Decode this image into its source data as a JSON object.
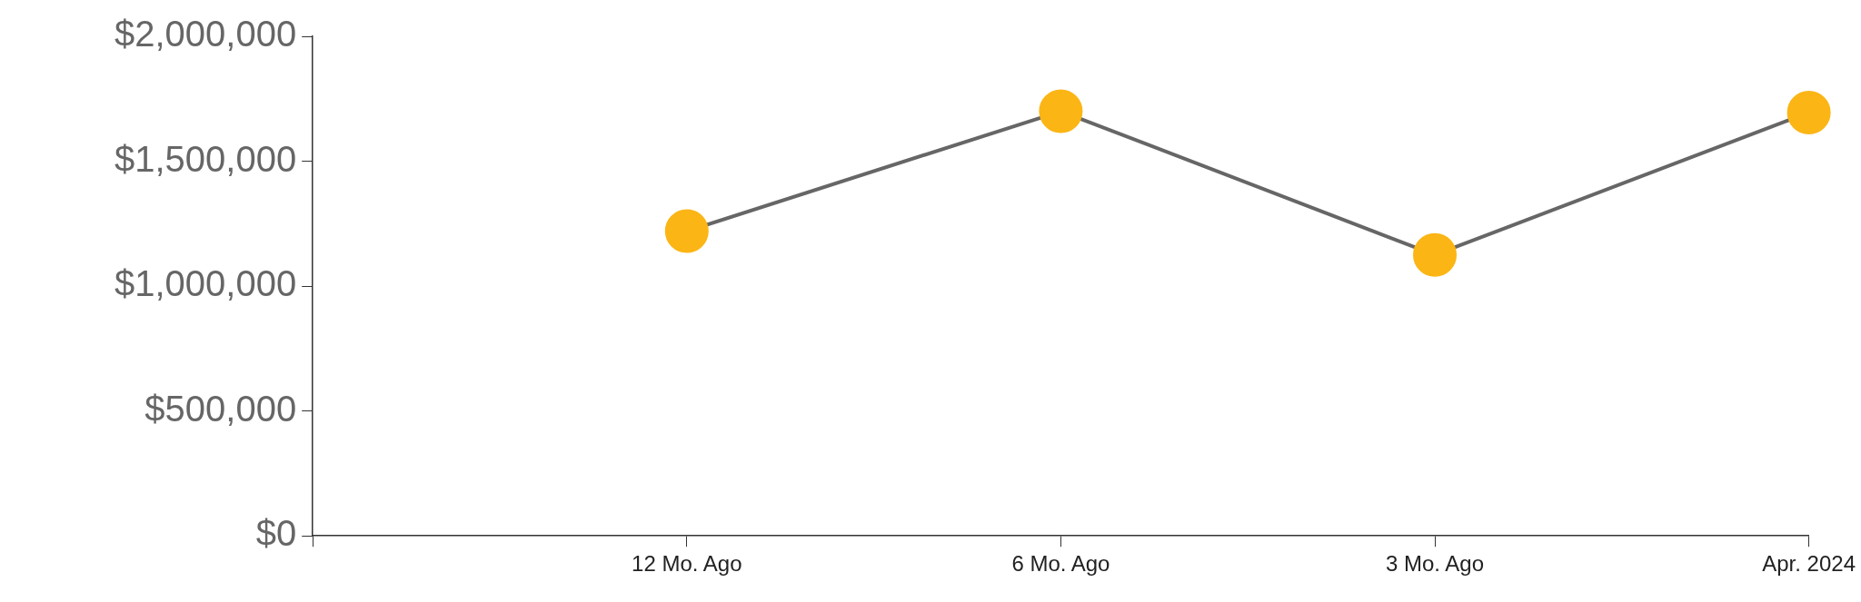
{
  "chart_data": {
    "type": "line",
    "categories": [
      null,
      "12 Mo. Ago",
      "6 Mo. Ago",
      "3 Mo. Ago",
      "Apr. 2024"
    ],
    "series": [
      {
        "color": "#fbb515",
        "values": [
          null,
          1220000,
          1700000,
          1125000,
          1695000
        ]
      }
    ],
    "ylim": [
      0,
      2000000
    ],
    "yticks": [
      {
        "value": 0,
        "label": "$0"
      },
      {
        "value": 500000,
        "label": "$500,000"
      },
      {
        "value": 1000000,
        "label": "$1,000,000"
      },
      {
        "value": 1500000,
        "label": "$1,500,000"
      },
      {
        "value": 2000000,
        "label": "$2,000,000"
      }
    ],
    "grid": false,
    "legend": false,
    "marker": "circle",
    "line_style": "solid"
  }
}
